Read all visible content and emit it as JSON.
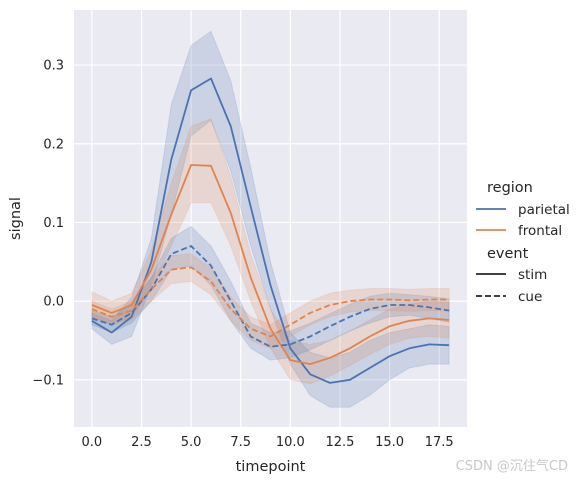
{
  "chart_data": {
    "type": "line",
    "xlabel": "timepoint",
    "ylabel": "signal",
    "xlim": [
      -0.9,
      18.9
    ],
    "ylim": [
      -0.16,
      0.37
    ],
    "xticks": [
      0,
      2.5,
      5,
      7.5,
      10,
      12.5,
      15,
      17.5
    ],
    "xtick_labels": [
      "0.0",
      "2.5",
      "5.0",
      "7.5",
      "10.0",
      "12.5",
      "15.0",
      "17.5"
    ],
    "yticks": [
      -0.1,
      0,
      0.1,
      0.2,
      0.3
    ],
    "ytick_labels": [
      "−0.1",
      "0.0",
      "0.1",
      "0.2",
      "0.3"
    ],
    "grid": true,
    "legend": {
      "placement": "right",
      "hue_title": "region",
      "style_title": "event",
      "hue_entries": [
        {
          "label": "parietal",
          "color": "#4c72b0"
        },
        {
          "label": "frontal",
          "color": "#dd8452"
        }
      ],
      "style_entries": [
        {
          "label": "stim",
          "dash": "solid"
        },
        {
          "label": "cue",
          "dash": "dashed"
        }
      ]
    },
    "x": [
      0,
      1,
      2,
      3,
      4,
      5,
      6,
      7,
      8,
      9,
      10,
      11,
      12,
      13,
      14,
      15,
      16,
      17,
      18
    ],
    "series": [
      {
        "name": "parietal",
        "event": "stim",
        "color": "#4c72b0",
        "dash": "solid",
        "values": [
          -0.025,
          -0.04,
          -0.02,
          0.05,
          0.18,
          0.268,
          0.283,
          0.222,
          0.12,
          0.02,
          -0.06,
          -0.093,
          -0.104,
          -0.1,
          -0.085,
          -0.07,
          -0.06,
          -0.055,
          -0.056
        ],
        "ci_low": [
          -0.035,
          -0.055,
          -0.045,
          0.02,
          0.11,
          0.21,
          0.23,
          0.165,
          0.07,
          -0.01,
          -0.08,
          -0.12,
          -0.135,
          -0.135,
          -0.12,
          -0.1,
          -0.085,
          -0.08,
          -0.08
        ],
        "ci_high": [
          -0.015,
          -0.025,
          0.005,
          0.08,
          0.25,
          0.325,
          0.343,
          0.28,
          0.17,
          0.05,
          -0.04,
          -0.065,
          -0.072,
          -0.065,
          -0.05,
          -0.04,
          -0.035,
          -0.03,
          -0.032
        ]
      },
      {
        "name": "frontal",
        "event": "stim",
        "color": "#dd8452",
        "dash": "solid",
        "values": [
          -0.005,
          -0.015,
          -0.005,
          0.04,
          0.11,
          0.173,
          0.172,
          0.112,
          0.03,
          -0.035,
          -0.075,
          -0.08,
          -0.072,
          -0.06,
          -0.045,
          -0.032,
          -0.025,
          -0.022,
          -0.024
        ],
        "ci_low": [
          -0.02,
          -0.03,
          -0.02,
          0.015,
          0.07,
          0.125,
          0.125,
          0.07,
          0.0,
          -0.06,
          -0.1,
          -0.105,
          -0.095,
          -0.082,
          -0.068,
          -0.055,
          -0.047,
          -0.045,
          -0.047
        ],
        "ci_high": [
          0.012,
          0.0,
          0.01,
          0.065,
          0.15,
          0.222,
          0.232,
          0.158,
          0.06,
          -0.01,
          -0.05,
          -0.055,
          -0.05,
          -0.038,
          -0.024,
          -0.01,
          -0.004,
          0.0,
          -0.002
        ]
      },
      {
        "name": "parietal",
        "event": "cue",
        "color": "#4c72b0",
        "dash": "dashed",
        "values": [
          -0.022,
          -0.03,
          -0.015,
          0.015,
          0.06,
          0.07,
          0.045,
          0.0,
          -0.045,
          -0.058,
          -0.055,
          -0.045,
          -0.032,
          -0.02,
          -0.01,
          -0.005,
          -0.005,
          -0.008,
          -0.012
        ],
        "ci_low": [
          -0.03,
          -0.04,
          -0.028,
          0.0,
          0.04,
          0.045,
          0.02,
          -0.025,
          -0.06,
          -0.075,
          -0.072,
          -0.062,
          -0.05,
          -0.038,
          -0.028,
          -0.02,
          -0.018,
          -0.022,
          -0.027
        ],
        "ci_high": [
          -0.012,
          -0.02,
          -0.003,
          0.03,
          0.08,
          0.095,
          0.07,
          0.025,
          -0.028,
          -0.04,
          -0.038,
          -0.028,
          -0.016,
          -0.004,
          0.006,
          0.01,
          0.008,
          0.006,
          0.003
        ]
      },
      {
        "name": "frontal",
        "event": "cue",
        "color": "#dd8452",
        "dash": "dashed",
        "values": [
          -0.01,
          -0.02,
          -0.012,
          0.015,
          0.04,
          0.043,
          0.025,
          -0.01,
          -0.035,
          -0.045,
          -0.03,
          -0.015,
          -0.005,
          0.0,
          0.002,
          0.002,
          0.001,
          0.002,
          0.002
        ],
        "ci_low": [
          -0.02,
          -0.03,
          -0.024,
          0.0,
          0.022,
          0.025,
          0.008,
          -0.025,
          -0.05,
          -0.06,
          -0.045,
          -0.03,
          -0.02,
          -0.014,
          -0.012,
          -0.012,
          -0.013,
          -0.012,
          -0.012
        ],
        "ci_high": [
          0.0,
          -0.01,
          0.0,
          0.03,
          0.058,
          0.06,
          0.042,
          0.005,
          -0.02,
          -0.03,
          -0.015,
          0.0,
          0.01,
          0.014,
          0.016,
          0.016,
          0.015,
          0.016,
          0.016
        ]
      }
    ]
  },
  "watermark": "CSDN @沉住气CD"
}
